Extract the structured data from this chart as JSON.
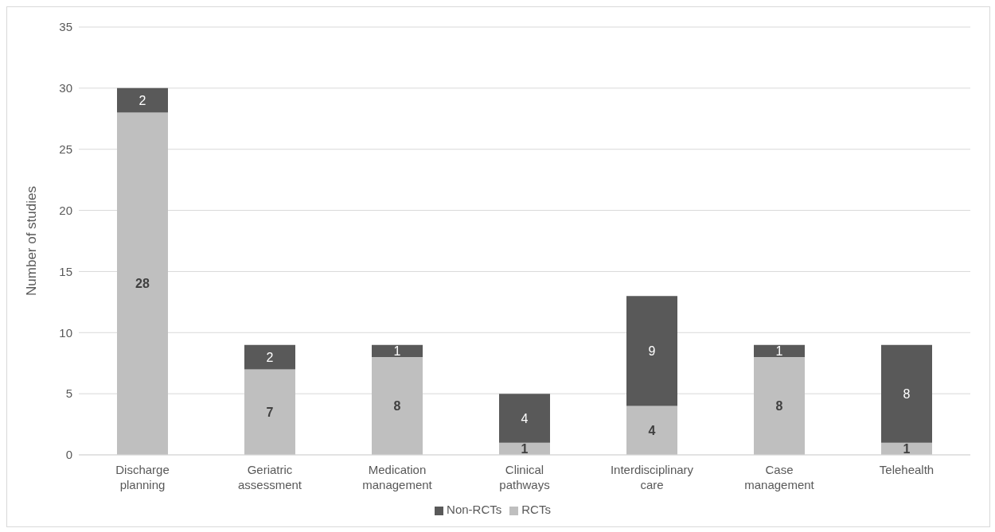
{
  "chart_data": {
    "type": "bar",
    "stacked": true,
    "ylabel": "Number of studies",
    "categories": [
      "Discharge planning",
      "Geriatric assessment",
      "Medication management",
      "Clinical pathways",
      "Interdisciplinary care",
      "Case management",
      "Telehealth"
    ],
    "series": [
      {
        "name": "RCTs",
        "color": "#bfbfbf",
        "values": [
          28,
          7,
          8,
          1,
          4,
          8,
          1
        ]
      },
      {
        "name": "Non-RCTs",
        "color": "#595959",
        "values": [
          2,
          2,
          1,
          4,
          9,
          1,
          8
        ]
      }
    ],
    "ylim": [
      0,
      35
    ],
    "yticks": [
      0,
      5,
      10,
      15,
      20,
      25,
      30,
      35
    ],
    "grid": "y",
    "legend": "bottom",
    "data_labels": true
  }
}
